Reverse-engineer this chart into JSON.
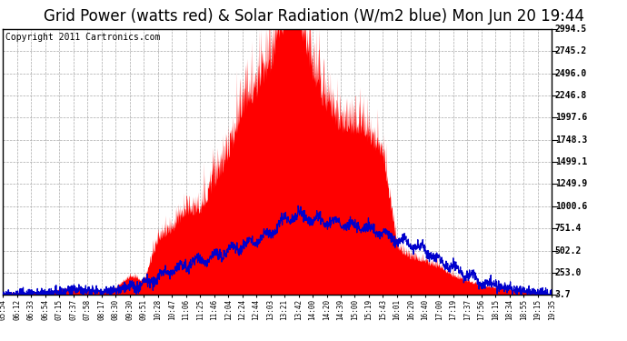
{
  "title": "Grid Power (watts red) & Solar Radiation (W/m2 blue) Mon Jun 20 19:44",
  "copyright": "Copyright 2011 Cartronics.com",
  "yticks": [
    3.7,
    253.0,
    502.2,
    751.4,
    1000.6,
    1249.9,
    1499.1,
    1748.3,
    1997.6,
    2246.8,
    2496.0,
    2745.2,
    2994.5
  ],
  "ytick_labels": [
    "3.7",
    "253.0",
    "502.2",
    "751.4",
    "1000.6",
    "1249.9",
    "1499.1",
    "1748.3",
    "1997.6",
    "2246.8",
    "2496.0",
    "2745.2",
    "2994.5"
  ],
  "xtick_labels": [
    "05:54",
    "06:12",
    "06:33",
    "06:54",
    "07:15",
    "07:37",
    "07:58",
    "08:17",
    "08:30",
    "09:30",
    "09:51",
    "10:28",
    "10:47",
    "11:06",
    "11:25",
    "11:46",
    "12:04",
    "12:24",
    "12:44",
    "13:03",
    "13:21",
    "13:42",
    "14:00",
    "14:20",
    "14:39",
    "15:00",
    "15:19",
    "15:43",
    "16:01",
    "16:20",
    "16:40",
    "17:00",
    "17:19",
    "17:37",
    "17:56",
    "18:15",
    "18:34",
    "18:55",
    "19:15",
    "19:35"
  ],
  "ymin": 3.7,
  "ymax": 2994.5,
  "bg_outer": "#ffffff",
  "plot_bg": "#ffffff",
  "grid_color": "#aaaaaa",
  "red_color": "#ff0000",
  "blue_color": "#0000cc",
  "title_fontsize": 12,
  "copyright_fontsize": 7,
  "border_color": "#000000"
}
